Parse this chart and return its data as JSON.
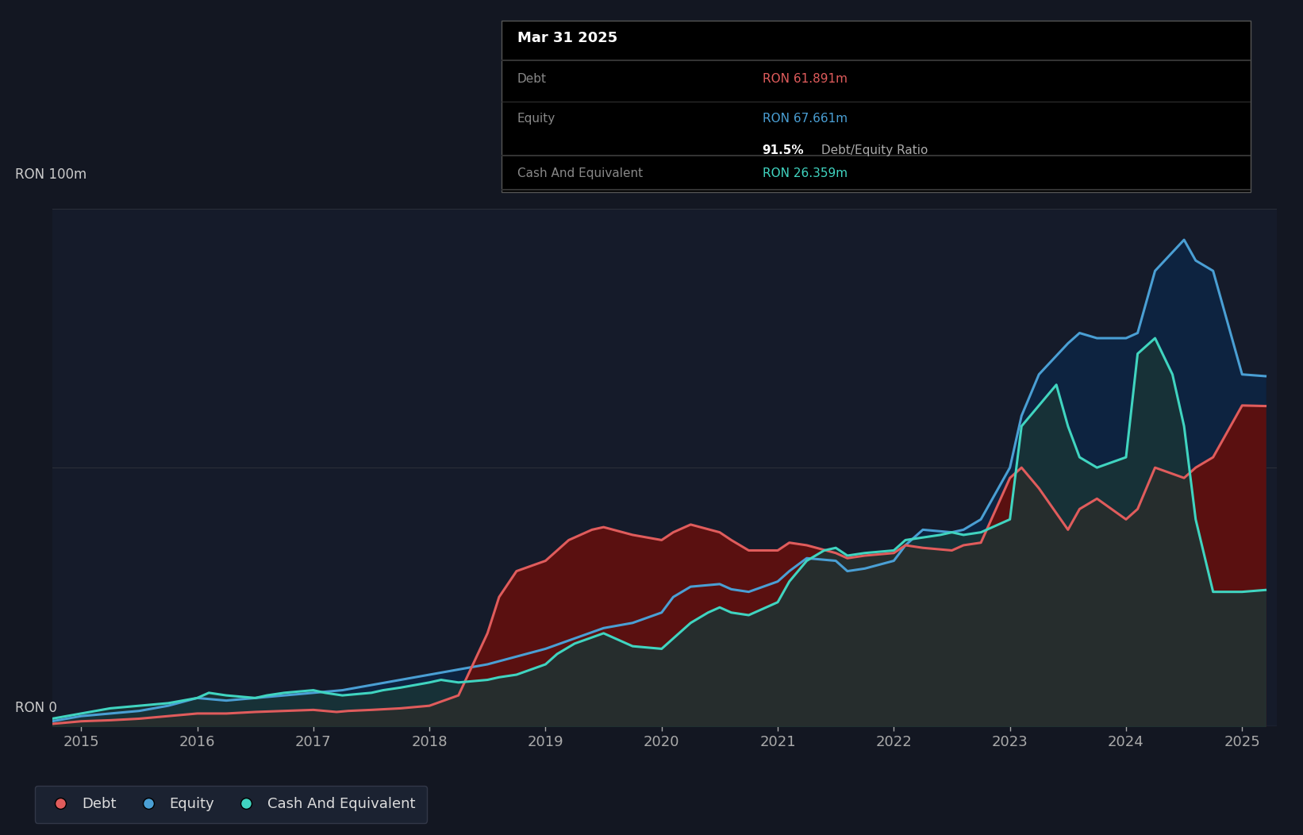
{
  "background_color": "#131722",
  "plot_bg_color": "#151b2a",
  "grid_color": "#2a2e39",
  "ylim": [
    0,
    100
  ],
  "ylabel_top": "RON 100m",
  "ylabel_bot": "RON 0",
  "x_years": [
    2015,
    2016,
    2017,
    2018,
    2019,
    2020,
    2021,
    2022,
    2023,
    2024,
    2025
  ],
  "debt_color": "#e05c5c",
  "equity_color": "#4a9fd4",
  "cash_color": "#40d4c0",
  "debt_fill_color": "#5a1010",
  "equity_fill_color": "#0d2340",
  "cash_fill_color": "#1a3535",
  "debt_x": [
    2014.75,
    2015.0,
    2015.25,
    2015.5,
    2015.75,
    2016.0,
    2016.25,
    2016.5,
    2016.75,
    2017.0,
    2017.1,
    2017.2,
    2017.3,
    2017.5,
    2017.75,
    2018.0,
    2018.25,
    2018.5,
    2018.6,
    2018.75,
    2019.0,
    2019.1,
    2019.2,
    2019.4,
    2019.5,
    2019.75,
    2020.0,
    2020.1,
    2020.25,
    2020.5,
    2020.6,
    2020.75,
    2021.0,
    2021.1,
    2021.25,
    2021.5,
    2021.6,
    2021.75,
    2022.0,
    2022.1,
    2022.25,
    2022.5,
    2022.6,
    2022.75,
    2023.0,
    2023.1,
    2023.25,
    2023.5,
    2023.6,
    2023.75,
    2024.0,
    2024.1,
    2024.25,
    2024.5,
    2024.6,
    2024.75,
    2025.0,
    2025.2
  ],
  "debt_y": [
    0.5,
    1.0,
    1.2,
    1.5,
    2.0,
    2.5,
    2.5,
    2.8,
    3.0,
    3.2,
    3.0,
    2.8,
    3.0,
    3.2,
    3.5,
    4.0,
    6.0,
    18.0,
    25.0,
    30.0,
    32.0,
    34.0,
    36.0,
    38.0,
    38.5,
    37.0,
    36.0,
    37.5,
    39.0,
    37.5,
    36.0,
    34.0,
    34.0,
    35.5,
    35.0,
    33.5,
    32.5,
    33.0,
    33.5,
    35.0,
    34.5,
    34.0,
    35.0,
    35.5,
    48.0,
    50.0,
    46.0,
    38.0,
    42.0,
    44.0,
    40.0,
    42.0,
    50.0,
    48.0,
    50.0,
    52.0,
    62.0,
    61.891
  ],
  "equity_x": [
    2014.75,
    2015.0,
    2015.25,
    2015.5,
    2015.75,
    2016.0,
    2016.25,
    2016.5,
    2016.75,
    2017.0,
    2017.25,
    2017.5,
    2017.75,
    2018.0,
    2018.25,
    2018.5,
    2018.75,
    2019.0,
    2019.25,
    2019.5,
    2019.75,
    2020.0,
    2020.1,
    2020.25,
    2020.5,
    2020.6,
    2020.75,
    2021.0,
    2021.1,
    2021.25,
    2021.5,
    2021.6,
    2021.75,
    2022.0,
    2022.1,
    2022.25,
    2022.5,
    2022.6,
    2022.75,
    2023.0,
    2023.1,
    2023.25,
    2023.5,
    2023.6,
    2023.75,
    2024.0,
    2024.1,
    2024.25,
    2024.5,
    2024.6,
    2024.75,
    2025.0,
    2025.2
  ],
  "equity_y": [
    1.0,
    2.0,
    2.5,
    3.0,
    4.0,
    5.5,
    5.0,
    5.5,
    6.0,
    6.5,
    7.0,
    8.0,
    9.0,
    10.0,
    11.0,
    12.0,
    13.5,
    15.0,
    17.0,
    19.0,
    20.0,
    22.0,
    25.0,
    27.0,
    27.5,
    26.5,
    26.0,
    28.0,
    30.0,
    32.5,
    32.0,
    30.0,
    30.5,
    32.0,
    35.0,
    38.0,
    37.5,
    38.0,
    40.0,
    50.0,
    60.0,
    68.0,
    74.0,
    76.0,
    75.0,
    75.0,
    76.0,
    88.0,
    94.0,
    90.0,
    88.0,
    68.0,
    67.661
  ],
  "cash_x": [
    2014.75,
    2015.0,
    2015.25,
    2015.5,
    2015.75,
    2016.0,
    2016.1,
    2016.25,
    2016.5,
    2016.6,
    2016.75,
    2017.0,
    2017.1,
    2017.25,
    2017.5,
    2017.6,
    2017.75,
    2018.0,
    2018.1,
    2018.25,
    2018.5,
    2018.6,
    2018.75,
    2019.0,
    2019.1,
    2019.25,
    2019.5,
    2019.6,
    2019.75,
    2020.0,
    2020.1,
    2020.25,
    2020.4,
    2020.5,
    2020.6,
    2020.75,
    2021.0,
    2021.1,
    2021.25,
    2021.4,
    2021.5,
    2021.6,
    2021.75,
    2022.0,
    2022.1,
    2022.25,
    2022.4,
    2022.5,
    2022.6,
    2022.75,
    2023.0,
    2023.1,
    2023.25,
    2023.4,
    2023.5,
    2023.6,
    2023.75,
    2024.0,
    2024.1,
    2024.25,
    2024.4,
    2024.5,
    2024.6,
    2024.75,
    2025.0,
    2025.2
  ],
  "cash_y": [
    1.5,
    2.5,
    3.5,
    4.0,
    4.5,
    5.5,
    6.5,
    6.0,
    5.5,
    6.0,
    6.5,
    7.0,
    6.5,
    6.0,
    6.5,
    7.0,
    7.5,
    8.5,
    9.0,
    8.5,
    9.0,
    9.5,
    10.0,
    12.0,
    14.0,
    16.0,
    18.0,
    17.0,
    15.5,
    15.0,
    17.0,
    20.0,
    22.0,
    23.0,
    22.0,
    21.5,
    24.0,
    28.0,
    32.0,
    34.0,
    34.5,
    33.0,
    33.5,
    34.0,
    36.0,
    36.5,
    37.0,
    37.5,
    37.0,
    37.5,
    40.0,
    58.0,
    62.0,
    66.0,
    58.0,
    52.0,
    50.0,
    52.0,
    72.0,
    75.0,
    68.0,
    58.0,
    40.0,
    26.0,
    26.0,
    26.359
  ],
  "legend_items": [
    {
      "label": "Debt",
      "color": "#e05c5c"
    },
    {
      "label": "Equity",
      "color": "#4a9fd4"
    },
    {
      "label": "Cash And Equivalent",
      "color": "#40d4c0"
    }
  ],
  "tooltip": {
    "date": "Mar 31 2025",
    "debt_label": "Debt",
    "debt_value": "RON 61.891m",
    "equity_label": "Equity",
    "equity_value": "RON 67.661m",
    "ratio_value": "91.5%",
    "ratio_label": " Debt/Equity Ratio",
    "cash_label": "Cash And Equivalent",
    "cash_value": "RON 26.359m"
  }
}
